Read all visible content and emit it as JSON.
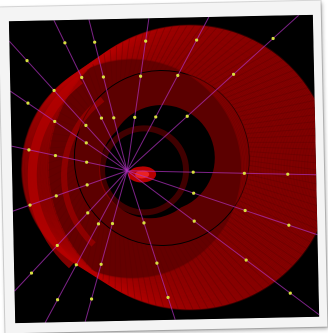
{
  "colors": {
    "background": "#000000",
    "rings": "#b80000",
    "ring_shadow": "#5a0000",
    "lines": "#b030c0",
    "nodes": "#d8e040",
    "frame": "#f4f4f4"
  }
}
